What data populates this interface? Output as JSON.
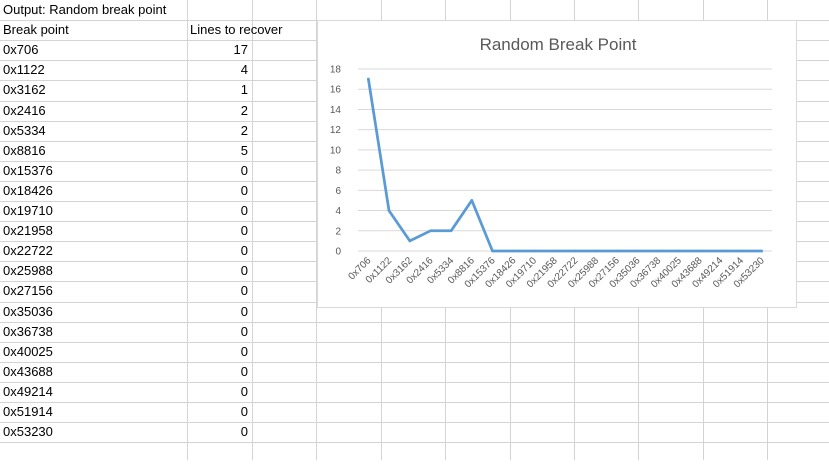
{
  "sheet": {
    "title_cell": "Output: Random break point",
    "headers": {
      "break_point": "Break point",
      "lines": "Lines to recover"
    },
    "rows": [
      {
        "bp": "0x706",
        "lines": "17"
      },
      {
        "bp": "0x1122",
        "lines": "4"
      },
      {
        "bp": "0x3162",
        "lines": "1"
      },
      {
        "bp": "0x2416",
        "lines": "2"
      },
      {
        "bp": "0x5334",
        "lines": "2"
      },
      {
        "bp": "0x8816",
        "lines": "5"
      },
      {
        "bp": "0x15376",
        "lines": "0"
      },
      {
        "bp": "0x18426",
        "lines": "0"
      },
      {
        "bp": "0x19710",
        "lines": "0"
      },
      {
        "bp": "0x21958",
        "lines": "0"
      },
      {
        "bp": "0x22722",
        "lines": "0"
      },
      {
        "bp": "0x25988",
        "lines": "0"
      },
      {
        "bp": "0x27156",
        "lines": "0"
      },
      {
        "bp": "0x35036",
        "lines": "0"
      },
      {
        "bp": "0x36738",
        "lines": "0"
      },
      {
        "bp": "0x40025",
        "lines": "0"
      },
      {
        "bp": "0x43688",
        "lines": "0"
      },
      {
        "bp": "0x49214",
        "lines": "0"
      },
      {
        "bp": "0x51914",
        "lines": "0"
      },
      {
        "bp": "0x53230",
        "lines": "0"
      }
    ]
  },
  "colors": {
    "gridline": "#d4d4d4",
    "series": "#5b9bd5",
    "chart_gridline": "#d9d9d9",
    "axis_text": "#595959"
  },
  "chart_data": {
    "type": "line",
    "title": "Random Break Point",
    "xlabel": "",
    "ylabel": "",
    "categories": [
      "0x706",
      "0x1122",
      "0x3162",
      "0x2416",
      "0x5334",
      "0x8816",
      "0x15376",
      "0x18426",
      "0x19710",
      "0x21958",
      "0x22722",
      "0x25988",
      "0x27156",
      "0x35036",
      "0x36738",
      "0x40025",
      "0x43688",
      "0x49214",
      "0x51914",
      "0x53230"
    ],
    "series": [
      {
        "values": [
          17,
          4,
          1,
          2,
          2,
          5,
          0,
          0,
          0,
          0,
          0,
          0,
          0,
          0,
          0,
          0,
          0,
          0,
          0,
          0
        ]
      }
    ],
    "ylim": [
      0,
      18
    ],
    "yticks": [
      0,
      2,
      4,
      6,
      8,
      10,
      12,
      14,
      16,
      18
    ],
    "grid": true,
    "legend": "none"
  }
}
